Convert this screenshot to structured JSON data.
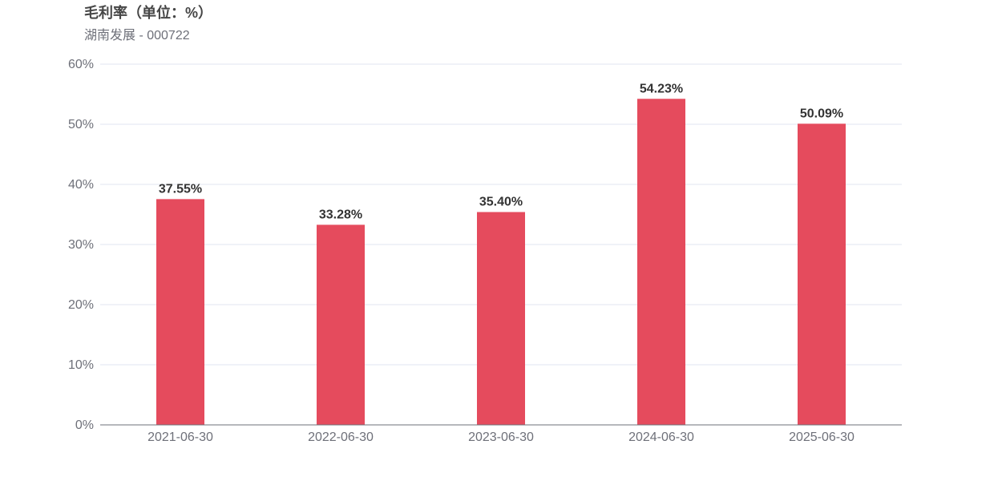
{
  "chart_data": {
    "type": "bar",
    "title": "毛利率（单位：%）",
    "subtitle": "湖南发展 - 000722",
    "categories": [
      "2021-06-30",
      "2022-06-30",
      "2023-06-30",
      "2024-06-30",
      "2025-06-30"
    ],
    "series": [
      {
        "values": [
          37.55,
          33.28,
          35.4,
          54.23,
          50.09
        ],
        "labels": [
          "37.55%",
          "33.28%",
          "35.40%",
          "54.23%",
          "50.09%"
        ]
      }
    ],
    "ylim": [
      0,
      60
    ],
    "yticks": [
      0,
      10,
      20,
      30,
      40,
      50,
      60
    ],
    "ytick_labels": [
      "0%",
      "10%",
      "20%",
      "30%",
      "40%",
      "50%",
      "60%"
    ],
    "grid": true,
    "legend": "none",
    "colors": {
      "bar": "#e54b5d",
      "grid": "#e0e6f1",
      "axis": "#6e7079"
    }
  }
}
